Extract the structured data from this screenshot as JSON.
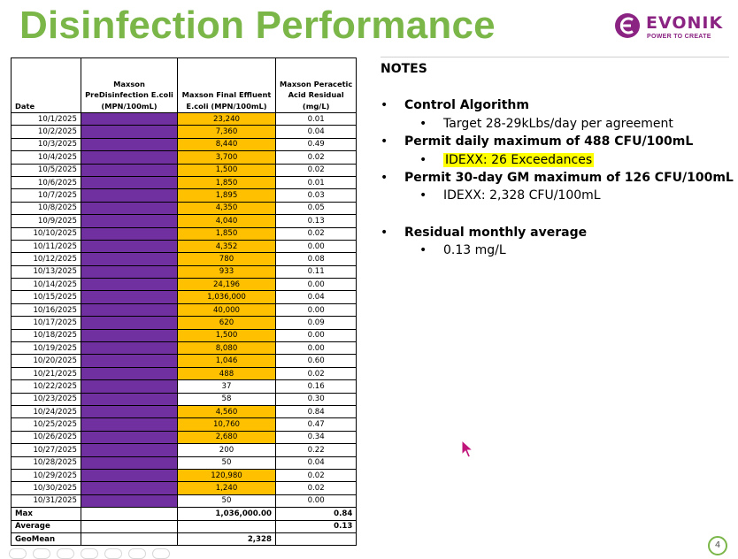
{
  "title": "Disinfection Performance",
  "logo": {
    "wordmark": "EVONIK",
    "tagline": "POWER TO CREATE"
  },
  "table": {
    "headers": {
      "date": "Date",
      "pre": [
        "Maxson",
        "PreDisinfection E.coli",
        "(MPN/100mL)"
      ],
      "final": [
        "Maxson Final Effluent",
        "E.coli  (MPN/100mL)"
      ],
      "resid": [
        "Maxson Peracetic",
        "Acid Residual",
        "(mg/L)"
      ]
    },
    "rows": [
      {
        "date": "10/1/2025",
        "final": "23,240",
        "resid": "0.01",
        "exceed": true
      },
      {
        "date": "10/2/2025",
        "final": "7,360",
        "resid": "0.04",
        "exceed": true
      },
      {
        "date": "10/3/2025",
        "final": "8,440",
        "resid": "0.49",
        "exceed": true
      },
      {
        "date": "10/4/2025",
        "final": "3,700",
        "resid": "0.02",
        "exceed": true
      },
      {
        "date": "10/5/2025",
        "final": "1,500",
        "resid": "0.02",
        "exceed": true
      },
      {
        "date": "10/6/2025",
        "final": "1,850",
        "resid": "0.01",
        "exceed": true
      },
      {
        "date": "10/7/2025",
        "final": "1,895",
        "resid": "0.03",
        "exceed": true
      },
      {
        "date": "10/8/2025",
        "final": "4,350",
        "resid": "0.05",
        "exceed": true
      },
      {
        "date": "10/9/2025",
        "final": "4,040",
        "resid": "0.13",
        "exceed": true
      },
      {
        "date": "10/10/2025",
        "final": "1,850",
        "resid": "0.02",
        "exceed": true
      },
      {
        "date": "10/11/2025",
        "final": "4,352",
        "resid": "0.00",
        "exceed": true
      },
      {
        "date": "10/12/2025",
        "final": "780",
        "resid": "0.08",
        "exceed": true
      },
      {
        "date": "10/13/2025",
        "final": "933",
        "resid": "0.11",
        "exceed": true
      },
      {
        "date": "10/14/2025",
        "final": "24,196",
        "resid": "0.00",
        "exceed": true
      },
      {
        "date": "10/15/2025",
        "final": "1,036,000",
        "resid": "0.04",
        "exceed": true
      },
      {
        "date": "10/16/2025",
        "final": "40,000",
        "resid": "0.00",
        "exceed": true
      },
      {
        "date": "10/17/2025",
        "final": "620",
        "resid": "0.09",
        "exceed": true
      },
      {
        "date": "10/18/2025",
        "final": "1,500",
        "resid": "0.00",
        "exceed": true
      },
      {
        "date": "10/19/2025",
        "final": "8,080",
        "resid": "0.00",
        "exceed": true
      },
      {
        "date": "10/20/2025",
        "final": "1,046",
        "resid": "0.60",
        "exceed": true
      },
      {
        "date": "10/21/2025",
        "final": "488",
        "resid": "0.02",
        "exceed": true
      },
      {
        "date": "10/22/2025",
        "final": "37",
        "resid": "0.16",
        "exceed": false
      },
      {
        "date": "10/23/2025",
        "final": "58",
        "resid": "0.30",
        "exceed": false
      },
      {
        "date": "10/24/2025",
        "final": "4,560",
        "resid": "0.84",
        "exceed": true
      },
      {
        "date": "10/25/2025",
        "final": "10,760",
        "resid": "0.47",
        "exceed": true
      },
      {
        "date": "10/26/2025",
        "final": "2,680",
        "resid": "0.34",
        "exceed": true
      },
      {
        "date": "10/27/2025",
        "final": "200",
        "resid": "0.22",
        "exceed": false
      },
      {
        "date": "10/28/2025",
        "final": "50",
        "resid": "0.04",
        "exceed": false
      },
      {
        "date": "10/29/2025",
        "final": "120,980",
        "resid": "0.02",
        "exceed": true
      },
      {
        "date": "10/30/2025",
        "final": "1,240",
        "resid": "0.02",
        "exceed": true
      },
      {
        "date": "10/31/2025",
        "final": "50",
        "resid": "0.00",
        "exceed": false
      }
    ],
    "summary": {
      "max_label": "Max",
      "max_final": "1,036,000.00",
      "max_resid": "0.84",
      "avg_label": "Average",
      "avg_resid": "0.13",
      "geo_label": "GeoMean",
      "geo_final": "2,328"
    }
  },
  "notes": {
    "title": "NOTES",
    "bullet": "•",
    "control": "Control Algorithm",
    "control_sub": "Target 28-29kLbs/day per agreement",
    "permit_daily": "Permit daily maximum of 488 CFU/100mL",
    "permit_daily_sub": "IDEXX: 26 Exceedances",
    "permit_30": "Permit 30-day GM maximum of 126 CFU/100mL",
    "permit_30_sub": "IDEXX: 2,328 CFU/100mL",
    "residual": "Residual monthly average",
    "residual_sub": "0.13 mg/L"
  },
  "page_number": "4",
  "colors": {
    "title_green": "#7ab648",
    "brand_purple": "#8a2382",
    "cell_purple": "#7030a0",
    "cell_orange": "#ffc000",
    "highlight": "#ffff00"
  }
}
